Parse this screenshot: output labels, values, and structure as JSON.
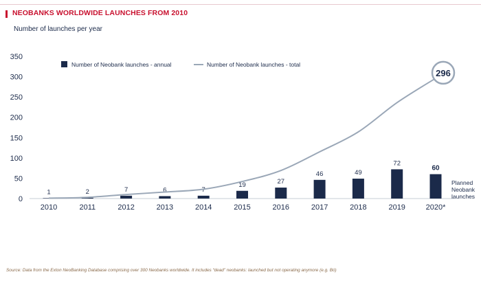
{
  "header": {
    "title": "NEOBANKS WORLDWIDE LAUNCHES FROM 2010",
    "subtitle": "Number of launches per year"
  },
  "footer": {
    "source": "Source: Data from the Exton NeoBanking Database comprising over 300 Neobanks worldwide. It includes “dead” neobanks: launched but not operating anymore (e.g. Bó)"
  },
  "colors": {
    "title": "#c8102e",
    "bar": "#1b2a4a",
    "line": "#9aa7b7",
    "axis_text": "#1b2a4a"
  },
  "chart_data": {
    "type": "bar",
    "categories": [
      "2010",
      "2011",
      "2012",
      "2013",
      "2014",
      "2015",
      "2016",
      "2017",
      "2018",
      "2019",
      "2020*"
    ],
    "series": [
      {
        "name": "Number of Neobank launches - annual",
        "type": "bar",
        "values": [
          1,
          2,
          7,
          6,
          7,
          19,
          27,
          46,
          49,
          72,
          60
        ]
      },
      {
        "name": "Number of Neobank launches - total",
        "type": "line",
        "values": [
          1,
          3,
          10,
          16,
          23,
          42,
          69,
          115,
          164,
          236,
          296
        ]
      }
    ],
    "ylim": [
      0,
      350
    ],
    "yticks": [
      0,
      50,
      100,
      150,
      200,
      250,
      300,
      350
    ],
    "grid": false,
    "legend_position": "top",
    "highlight_label": "296",
    "annotation": "Planned\nNeobank\nlaunches"
  }
}
